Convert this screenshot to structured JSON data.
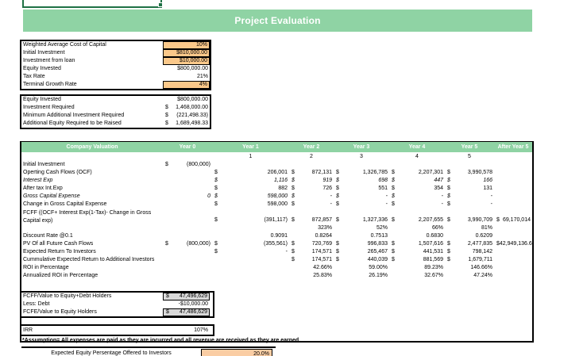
{
  "banner": {
    "title": "Project Evaluation"
  },
  "colors": {
    "banner_green": "#8FD3A4",
    "cell_orange": "#FAC88A",
    "offer_orange": "#FACDA4",
    "cell_gray": "#D9D9D9",
    "selection_green": "#1F7145",
    "border_black": "#000000"
  },
  "assumptions_table": {
    "rows": [
      {
        "label": "Weighted Average Cost of Capital",
        "value": "10%",
        "fill": "orange"
      },
      {
        "label": "Initial Investment",
        "value": "$810,000.00",
        "fill": "orange"
      },
      {
        "label": "Investment from loan",
        "value": "$10,000.00",
        "fill": "orange"
      },
      {
        "label": "Equity Invested",
        "value": "$800,000.00",
        "fill": "none"
      },
      {
        "label": "Tax Rate",
        "value": "21%",
        "fill": "none"
      },
      {
        "label": "Terminal Growth Rate",
        "value": "4%",
        "fill": "orange"
      }
    ]
  },
  "equity_table": {
    "rows": [
      {
        "label": "Equity Invested",
        "dollar": "",
        "value": "$800,000.00"
      },
      {
        "label": "Investment Required",
        "dollar": "$",
        "value": "1,468,000.00"
      },
      {
        "label": "Minimum Additional Investment Required",
        "dollar": "$",
        "value": "(221,498.33)"
      },
      {
        "label": "Additional Equity Required to be Raised",
        "dollar": "$",
        "value": "1,689,498.33"
      }
    ]
  },
  "valuation_table": {
    "headers": [
      "Company Valuation",
      "Year 0",
      "Year 1",
      "Year 2",
      "Year 3",
      "Year 4",
      "Year 5",
      "After Year 5"
    ],
    "period_numbers": [
      "",
      "",
      "1",
      "2",
      "3",
      "4",
      "5",
      ""
    ],
    "rows": [
      {
        "label": "Initial Investment",
        "cells": [
          {
            "d": "$",
            "v": "(800,000)"
          },
          null,
          null,
          null,
          null,
          null,
          null
        ]
      },
      {
        "label": "Operting Cash Flows (OCF)",
        "cells": [
          null,
          {
            "d": "$",
            "v": "206,001"
          },
          {
            "d": "$",
            "v": "872,131"
          },
          {
            "d": "$",
            "v": "1,326,785"
          },
          {
            "d": "$",
            "v": "2,207,301"
          },
          {
            "d": "$",
            "v": "3,990,578"
          },
          null
        ]
      },
      {
        "label": "Interest Exp",
        "italic": true,
        "cells": [
          null,
          {
            "d": "$",
            "v": "1,116"
          },
          {
            "d": "$",
            "v": "919"
          },
          {
            "d": "$",
            "v": "698"
          },
          {
            "d": "$",
            "v": "447"
          },
          {
            "d": "$",
            "v": "166"
          },
          null
        ]
      },
      {
        "label": "After tax Int.Exp",
        "cells": [
          null,
          {
            "d": "$",
            "v": "882"
          },
          {
            "d": "$",
            "v": "726"
          },
          {
            "d": "$",
            "v": "551"
          },
          {
            "d": "$",
            "v": "354"
          },
          {
            "d": "$",
            "v": "131"
          },
          null
        ]
      },
      {
        "label": "Gross Capital Expense",
        "italic": true,
        "cells": [
          {
            "v": "0"
          },
          {
            "d": "$",
            "v": "598,000"
          },
          {
            "d": "$",
            "v": "-"
          },
          {
            "d": "$",
            "v": "-"
          },
          {
            "d": "$",
            "v": "-"
          },
          {
            "d": "$",
            "v": "-"
          },
          null
        ]
      },
      {
        "label": "Change in Gross Capital Expense",
        "cells": [
          null,
          {
            "d": "$",
            "v": "598,000"
          },
          {
            "d": "$",
            "v": "-"
          },
          {
            "d": "$",
            "v": "-"
          },
          {
            "d": "$",
            "v": "-"
          },
          {
            "d": "$",
            "v": "-"
          },
          null
        ]
      },
      {
        "label": "FCFF ((OCF+ Interest Exp(1-Tax)- Change in Gross Capital exp)",
        "tall": true,
        "cells": [
          null,
          {
            "d": "$",
            "v": "(391,117)"
          },
          {
            "d": "$",
            "v": "872,857"
          },
          {
            "d": "$",
            "v": "1,327,336"
          },
          {
            "d": "$",
            "v": "2,207,655"
          },
          {
            "d": "$",
            "v": "3,990,709"
          },
          {
            "d": "$",
            "v": "69,170,014"
          }
        ]
      },
      {
        "label": "",
        "cells": [
          null,
          null,
          {
            "v": "323%"
          },
          {
            "v": "52%"
          },
          {
            "v": "66%"
          },
          {
            "v": "81%"
          },
          null
        ]
      },
      {
        "label": "Discount Rate @0.1",
        "cells": [
          null,
          {
            "v": "0.9091"
          },
          {
            "v": "0.8264"
          },
          {
            "v": "0.7513"
          },
          {
            "v": "0.6830"
          },
          {
            "v": "0.6209"
          },
          null
        ]
      },
      {
        "label": "PV Of all Future Cash Flows",
        "cells": [
          {
            "d": "$",
            "v": "(800,000)"
          },
          {
            "d": "$",
            "v": "(355,561)"
          },
          {
            "d": "$",
            "v": "720,769"
          },
          {
            "d": "$",
            "v": "996,833"
          },
          {
            "d": "$",
            "v": "1,507,616"
          },
          {
            "d": "$",
            "v": "2,477,835"
          },
          {
            "d": "$",
            "v": "42,949,136.61"
          }
        ]
      },
      {
        "label": "Expected Return To Investors",
        "cells": [
          null,
          {
            "d": "$",
            "v": "-"
          },
          {
            "d": "$",
            "v": "174,571"
          },
          {
            "d": "$",
            "v": "265,467"
          },
          {
            "d": "$",
            "v": "441,531"
          },
          {
            "d": "$",
            "v": "798,142"
          },
          null
        ]
      },
      {
        "label": "Cummulative Expected Return to Additional Investors",
        "cells": [
          null,
          null,
          {
            "d": "$",
            "v": "174,571"
          },
          {
            "d": "$",
            "v": "440,039"
          },
          {
            "d": "$",
            "v": "881,569"
          },
          {
            "d": "$",
            "v": "1,679,711"
          },
          null
        ]
      },
      {
        "label": "ROI in Percentage",
        "cells": [
          null,
          null,
          {
            "v": "42.66%"
          },
          {
            "v": "59.00%"
          },
          {
            "v": "89.23%"
          },
          {
            "v": "146.66%"
          },
          null
        ]
      },
      {
        "label": "Annualized ROI in Percentage",
        "cells": [
          null,
          null,
          {
            "v": "25.83%"
          },
          {
            "v": "26.19%"
          },
          {
            "v": "32.67%"
          },
          {
            "v": "47.24%"
          },
          null
        ]
      }
    ]
  },
  "value_summary_table": {
    "rows": [
      {
        "label": "FCFF/Value to Equity+Debt Holders",
        "dollar": "$",
        "value": "47,496,629",
        "fill": "gray"
      },
      {
        "label": "Less: Debt",
        "dollar": "",
        "value": "-$10,000.00",
        "fill": "none"
      },
      {
        "label": "FCFE/Value to Equity Holders",
        "dollar": "$",
        "value": "47,486,629",
        "fill": "gray"
      }
    ]
  },
  "irr": {
    "label": "IRR",
    "value": "107%"
  },
  "assumption_note": "*Assumption= All expenses are paid as they are incurred and all revenue are received as they are earned.",
  "equity_offer": {
    "label": "Expected Equity Persentage Offered to Investors",
    "value": "20.0%"
  }
}
